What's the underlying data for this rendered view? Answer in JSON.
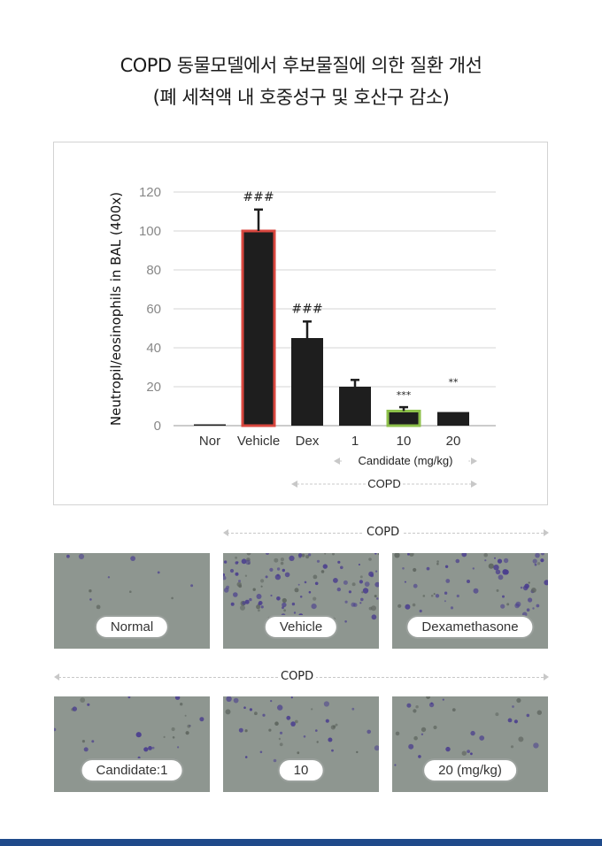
{
  "title": {
    "line1": "COPD 동물모델에서 후보물질에 의한 질환 개선",
    "line2": "(폐 세척액 내 호중성구 및 호산구 감소)"
  },
  "chart_data": {
    "type": "bar",
    "ylabel": "Neutropil/eosinophils in BAL (400x)",
    "ylim": [
      0,
      120
    ],
    "yticks": [
      0,
      20,
      40,
      60,
      80,
      100,
      120
    ],
    "categories": [
      "Nor",
      "Vehicle",
      "Dex",
      "1",
      "10",
      "20"
    ],
    "values": [
      0.3,
      100,
      45,
      20,
      7.5,
      7
    ],
    "errors": [
      0,
      11,
      8.5,
      3.5,
      2,
      0
    ],
    "significance": [
      "",
      "###",
      "###",
      "",
      "***",
      "**"
    ],
    "highlight": {
      "Vehicle": "#d9473f",
      "10": "#8dc04a"
    },
    "bar_color": "#1e1e1e",
    "grid": true,
    "group_labels": {
      "candidate": "Candidate (mg/kg)",
      "copd": "COPD"
    }
  },
  "images": {
    "copd_label_top": "COPD",
    "copd_label_bottom": "COPD",
    "row1": [
      "Normal",
      "Vehicle",
      "Dexamethasone"
    ],
    "row2": [
      "Candidate:1",
      "10",
      "20 (mg/kg)"
    ]
  },
  "colors": {
    "footer": "#1f4a8a"
  }
}
